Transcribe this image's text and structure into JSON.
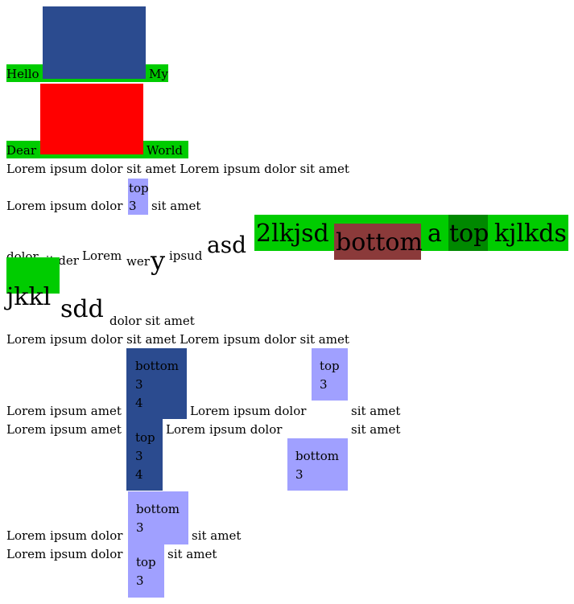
{
  "colors": {
    "green": "#00cc00",
    "dark_green": "#008800",
    "navy": "#2b4b8f",
    "red": "#ff0000",
    "maroon": "#8b3a3a",
    "lavender": "#a0a0ff"
  },
  "row1": {
    "left": "Hello",
    "right": "My"
  },
  "row2": {
    "left": "Dear",
    "right": "World"
  },
  "lorem_line": "Lorem ipsum dolor sit amet Lorem ipsum dolor sit amet",
  "line_top3": {
    "before": "Lorem ipsum dolor",
    "top": "top",
    "num": "3",
    "after": "sit amet"
  },
  "mixed": {
    "dolor": "dolor",
    "sit_der": "sit der",
    "lorem": "Lorem",
    "wer": "wer",
    "y": "y",
    "ipsud": "ipsud",
    "asd": "asd",
    "w1": "2lkjsd",
    "bottom": "bottom",
    "a": "a",
    "top": "top",
    "kjlkds": "kjlkds",
    "jkkl": "jkkl",
    "sdd": "sdd",
    "tail": "dolor sit amet"
  },
  "lorem_line2": "Lorem ipsum dolor sit amet Lorem ipsum dolor sit amet",
  "block_a": {
    "line1_left": "Lorem ipsum amet",
    "line1_mid": "Lorem ipsum dolor",
    "line1_right": "sit amet",
    "line2_left": "Lorem ipsum amet",
    "line2_mid": "Lorem ipsum dolor",
    "line2_right": "sit amet",
    "navy1": [
      "bottom",
      "3",
      "4"
    ],
    "navy2": [
      "top",
      "3",
      "4"
    ],
    "lav_top": [
      "top",
      "3"
    ],
    "lav_bottom": [
      "bottom",
      "3"
    ]
  },
  "block_b": {
    "line1_left": "Lorem ipsum dolor",
    "line1_right": "sit amet",
    "line2_left": "Lorem ipsum dolor",
    "line2_right": "sit amet",
    "lav_bottom": [
      "bottom",
      "3"
    ],
    "lav_top": [
      "top",
      "3"
    ]
  }
}
